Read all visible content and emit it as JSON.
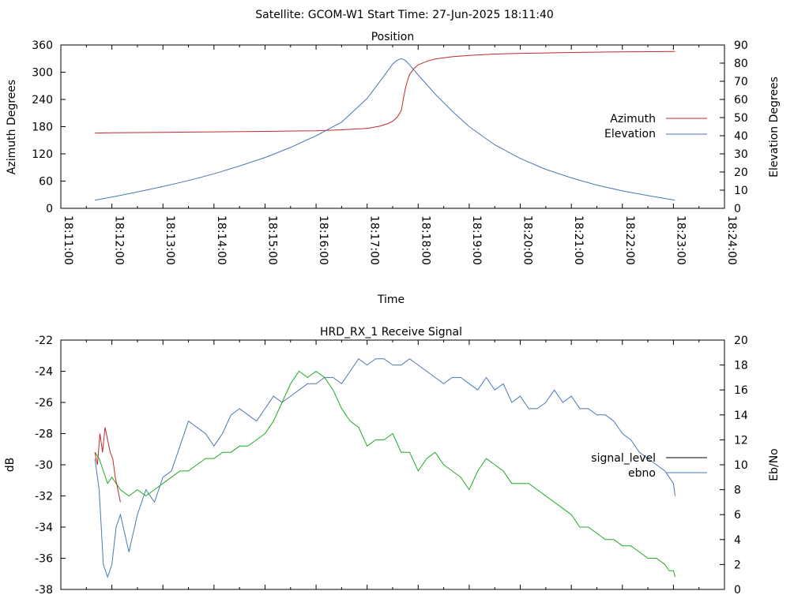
{
  "header": {
    "title": "Satellite: GCOM-W1    Start Time: 27-Jun-2025 18:11:40"
  },
  "chart_data": [
    {
      "type": "line",
      "title": "Position",
      "xlabel": "Time",
      "ylabel": "Azimuth Degrees",
      "y2label": "Elevation Degrees",
      "x_ticks": [
        "18:11:00",
        "18:12:00",
        "18:13:00",
        "18:14:00",
        "18:15:00",
        "18:16:00",
        "18:17:00",
        "18:18:00",
        "18:19:00",
        "18:20:00",
        "18:21:00",
        "18:22:00",
        "18:23:00",
        "18:24:00"
      ],
      "xlim_seconds_from_18_11_00": [
        0,
        780
      ],
      "ylim": [
        0,
        360
      ],
      "y_ticks": [
        0,
        60,
        120,
        180,
        240,
        300,
        360
      ],
      "y2lim": [
        0,
        90
      ],
      "y2_ticks": [
        0,
        10,
        20,
        30,
        40,
        50,
        60,
        70,
        80,
        90
      ],
      "legend_position": "right",
      "series": [
        {
          "name": "Azimuth",
          "axis": "y",
          "color": "#c0282d",
          "x": [
            40,
            60,
            120,
            180,
            240,
            300,
            330,
            360,
            375,
            385,
            390,
            395,
            400,
            402,
            405,
            408,
            410,
            415,
            420,
            430,
            440,
            460,
            480,
            510,
            540,
            570,
            600,
            640,
            680,
            722
          ],
          "y": [
            166,
            166.5,
            167.5,
            168.5,
            169.5,
            171,
            173,
            176,
            181,
            187,
            192,
            200,
            215,
            235,
            265,
            285,
            295,
            308,
            316,
            324,
            329,
            334,
            337,
            340,
            341.5,
            342.5,
            343.5,
            344.5,
            345,
            345.5
          ]
        },
        {
          "name": "Elevation",
          "axis": "y2",
          "color": "#4a78b5",
          "x": [
            40,
            60,
            90,
            120,
            150,
            180,
            210,
            240,
            270,
            300,
            330,
            360,
            380,
            390,
            395,
            400,
            405,
            410,
            420,
            440,
            460,
            480,
            510,
            540,
            570,
            600,
            630,
            660,
            690,
            722
          ],
          "y": [
            4.5,
            6.2,
            9.0,
            12.0,
            15.3,
            19.0,
            23.3,
            28.0,
            33.5,
            40.0,
            47.5,
            60.5,
            73.0,
            79.5,
            81.5,
            82.5,
            81.5,
            79.0,
            73.5,
            63.0,
            53.5,
            45.0,
            35.0,
            27.5,
            21.5,
            16.8,
            12.8,
            9.6,
            7.0,
            4.5
          ]
        }
      ]
    },
    {
      "type": "line",
      "title": "HRD_RX_1 Receive Signal",
      "ylabel": "dB",
      "y2label": "Eb/No",
      "xlim_seconds_from_18_11_00": [
        0,
        780
      ],
      "ylim": [
        -38,
        -22
      ],
      "y_ticks": [
        -38,
        -36,
        -34,
        -32,
        -30,
        -28,
        -26,
        -24,
        -22
      ],
      "y2lim": [
        0,
        20
      ],
      "y2_ticks": [
        0,
        2,
        4,
        6,
        8,
        10,
        12,
        14,
        16,
        18,
        20
      ],
      "legend_position": "right",
      "series": [
        {
          "name": "signal_level",
          "axis": "y",
          "color": "#000000",
          "x": [],
          "y": []
        },
        {
          "name": "ebno",
          "axis": "y2",
          "color": "#4a78b5",
          "x": [
            40,
            45,
            50,
            55,
            60,
            65,
            70,
            80,
            90,
            100,
            110,
            120,
            130,
            140,
            150,
            160,
            170,
            180,
            190,
            200,
            210,
            220,
            230,
            240,
            250,
            260,
            270,
            280,
            290,
            300,
            310,
            320,
            330,
            340,
            350,
            360,
            370,
            380,
            390,
            400,
            410,
            420,
            430,
            440,
            450,
            460,
            470,
            480,
            490,
            500,
            510,
            520,
            530,
            540,
            550,
            560,
            570,
            580,
            590,
            600,
            610,
            620,
            630,
            640,
            650,
            660,
            670,
            680,
            690,
            700,
            710,
            715,
            720,
            722
          ],
          "y": [
            10.5,
            8.0,
            2.0,
            1.0,
            2.0,
            5.0,
            6.0,
            3.0,
            6.0,
            8.0,
            7.0,
            9.0,
            9.5,
            11.5,
            13.5,
            13.0,
            12.5,
            11.5,
            12.5,
            14.0,
            14.5,
            14.0,
            13.5,
            14.5,
            15.5,
            15.0,
            15.5,
            16.0,
            16.5,
            16.5,
            17.0,
            17.0,
            16.5,
            17.5,
            18.5,
            18.0,
            18.5,
            18.5,
            18.0,
            18.0,
            18.5,
            18.0,
            17.5,
            17.0,
            16.5,
            17.0,
            17.0,
            16.5,
            16.0,
            17.0,
            16.0,
            16.5,
            15.0,
            15.5,
            14.5,
            14.5,
            15.0,
            16.0,
            15.0,
            15.5,
            14.5,
            14.5,
            14.0,
            14.0,
            13.5,
            12.5,
            12.0,
            11.0,
            10.5,
            10.0,
            9.5,
            9.0,
            8.5,
            7.5
          ]
        },
        {
          "name": "",
          "axis": "y2",
          "color": "#1faa1f",
          "x": [
            40,
            45,
            50,
            55,
            60,
            70,
            80,
            90,
            100,
            110,
            120,
            130,
            140,
            150,
            160,
            170,
            180,
            190,
            200,
            210,
            220,
            230,
            240,
            250,
            260,
            270,
            280,
            290,
            300,
            310,
            320,
            330,
            340,
            350,
            360,
            370,
            380,
            390,
            400,
            410,
            420,
            430,
            440,
            450,
            460,
            470,
            480,
            490,
            500,
            510,
            520,
            530,
            540,
            550,
            560,
            570,
            580,
            590,
            600,
            610,
            620,
            630,
            640,
            650,
            660,
            670,
            680,
            690,
            700,
            710,
            715,
            720,
            722
          ],
          "y": [
            11.0,
            10.5,
            9.5,
            8.5,
            9.0,
            8.0,
            7.5,
            8.0,
            7.5,
            8.0,
            8.5,
            9.0,
            9.5,
            9.5,
            10.0,
            10.5,
            10.5,
            11.0,
            11.0,
            11.5,
            11.5,
            12.0,
            12.5,
            13.5,
            15.0,
            16.5,
            17.5,
            17.0,
            17.5,
            17.0,
            16.0,
            14.5,
            13.5,
            13.0,
            11.5,
            12.0,
            12.0,
            12.5,
            11.0,
            11.0,
            9.5,
            10.5,
            11.0,
            10.0,
            9.5,
            9.0,
            8.0,
            9.5,
            10.5,
            10.0,
            9.5,
            8.5,
            8.5,
            8.5,
            8.0,
            7.5,
            7.0,
            6.5,
            6.0,
            5.0,
            5.0,
            4.5,
            4.0,
            4.0,
            3.5,
            3.5,
            3.0,
            2.5,
            2.5,
            2.0,
            1.5,
            1.5,
            1.0
          ]
        },
        {
          "name": "",
          "axis": "y2",
          "color": "#c0282d",
          "x": [
            40,
            43,
            46,
            49,
            52,
            55,
            58,
            61,
            64,
            67,
            70
          ],
          "y": [
            11.0,
            10.0,
            12.5,
            11.0,
            13.0,
            12.0,
            11.0,
            10.5,
            9.0,
            8.0,
            7.0
          ]
        }
      ]
    }
  ]
}
